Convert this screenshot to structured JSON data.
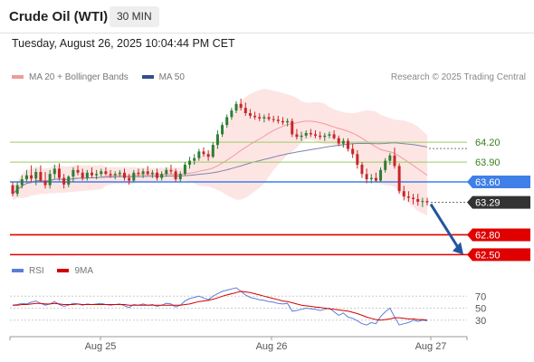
{
  "header": {
    "title": "Crude Oil (WTI)",
    "timeframe": "30 MIN"
  },
  "datetime": "Tuesday, August 26, 2025 10:04:44 PM CET",
  "legend": {
    "ma20_label": "MA 20 + Bollinger Bands",
    "ma50_label": "MA 50"
  },
  "copyright": "Research © 2025 Trading Central",
  "rsi_legend": {
    "rsi_label": "RSI",
    "ma_label": "9MA"
  },
  "colors": {
    "up": "#2e7d32",
    "down": "#c62828",
    "ma20": "#f19a9a",
    "bb_fill": "#fde0df",
    "ma50": "#7e86a8",
    "pivot": "#3f7fe8",
    "resistance": "#9acd63",
    "support": "#e00000",
    "current": "#333333",
    "rsi": "#5b7fd8",
    "rsi_ma": "#d40000",
    "arrow": "#2255a0"
  },
  "chart_data": {
    "type": "candlestick",
    "xaxis_labels": [
      "Aug 25",
      "Aug 26",
      "Aug 27"
    ],
    "ylim": [
      62.3,
      64.9
    ],
    "levels": [
      {
        "value": 64.2,
        "label": "64.20",
        "kind": "resistance"
      },
      {
        "value": 63.9,
        "label": "63.90",
        "kind": "resistance"
      },
      {
        "value": 63.6,
        "label": "63.60",
        "kind": "pivot"
      },
      {
        "value": 63.29,
        "label": "63.29",
        "kind": "current"
      },
      {
        "value": 62.8,
        "label": "62.80",
        "kind": "support"
      },
      {
        "value": 62.5,
        "label": "62.50",
        "kind": "support"
      }
    ],
    "candles": [
      [
        63.55,
        63.6,
        63.38,
        63.42
      ],
      [
        63.42,
        63.6,
        63.38,
        63.55
      ],
      [
        63.55,
        63.7,
        63.5,
        63.64
      ],
      [
        63.64,
        63.78,
        63.6,
        63.7
      ],
      [
        63.7,
        63.85,
        63.6,
        63.65
      ],
      [
        63.65,
        63.8,
        63.55,
        63.75
      ],
      [
        63.75,
        63.85,
        63.6,
        63.62
      ],
      [
        63.62,
        63.75,
        63.5,
        63.55
      ],
      [
        63.55,
        63.78,
        63.5,
        63.72
      ],
      [
        63.72,
        63.86,
        63.65,
        63.8
      ],
      [
        63.8,
        63.88,
        63.62,
        63.66
      ],
      [
        63.66,
        63.72,
        63.5,
        63.56
      ],
      [
        63.56,
        63.7,
        63.52,
        63.68
      ],
      [
        63.68,
        63.82,
        63.6,
        63.78
      ],
      [
        63.78,
        63.85,
        63.7,
        63.74
      ],
      [
        63.74,
        63.8,
        63.62,
        63.66
      ],
      [
        63.66,
        63.78,
        63.62,
        63.74
      ],
      [
        63.74,
        63.82,
        63.66,
        63.7
      ],
      [
        63.7,
        63.78,
        63.64,
        63.72
      ],
      [
        63.72,
        63.8,
        63.68,
        63.76
      ],
      [
        63.76,
        63.82,
        63.7,
        63.72
      ],
      [
        63.72,
        63.78,
        63.66,
        63.7
      ],
      [
        63.7,
        63.76,
        63.64,
        63.72
      ],
      [
        63.72,
        63.78,
        63.68,
        63.74
      ],
      [
        63.74,
        63.8,
        63.62,
        63.66
      ],
      [
        63.66,
        63.72,
        63.56,
        63.62
      ],
      [
        63.62,
        63.78,
        63.6,
        63.74
      ],
      [
        63.74,
        63.8,
        63.68,
        63.72
      ],
      [
        63.72,
        63.8,
        63.66,
        63.76
      ],
      [
        63.76,
        63.84,
        63.7,
        63.72
      ],
      [
        63.72,
        63.78,
        63.66,
        63.74
      ],
      [
        63.74,
        63.8,
        63.62,
        63.66
      ],
      [
        63.66,
        63.76,
        63.62,
        63.72
      ],
      [
        63.72,
        63.82,
        63.68,
        63.78
      ],
      [
        63.78,
        63.86,
        63.72,
        63.76
      ],
      [
        63.76,
        63.8,
        63.6,
        63.64
      ],
      [
        63.64,
        63.76,
        63.6,
        63.72
      ],
      [
        63.72,
        63.9,
        63.7,
        63.86
      ],
      [
        63.86,
        63.98,
        63.8,
        63.92
      ],
      [
        63.92,
        64.02,
        63.86,
        63.96
      ],
      [
        63.96,
        64.1,
        63.92,
        64.06
      ],
      [
        64.06,
        64.12,
        63.98,
        64.02
      ],
      [
        64.02,
        64.08,
        63.92,
        63.98
      ],
      [
        63.98,
        64.2,
        63.96,
        64.16
      ],
      [
        64.16,
        64.38,
        64.1,
        64.32
      ],
      [
        64.32,
        64.5,
        64.28,
        64.46
      ],
      [
        64.46,
        64.62,
        64.42,
        64.58
      ],
      [
        64.58,
        64.72,
        64.54,
        64.68
      ],
      [
        64.68,
        64.82,
        64.64,
        64.78
      ],
      [
        64.78,
        64.86,
        64.68,
        64.72
      ],
      [
        64.72,
        64.8,
        64.6,
        64.64
      ],
      [
        64.64,
        64.7,
        64.56,
        64.6
      ],
      [
        64.6,
        64.66,
        64.54,
        64.58
      ],
      [
        64.58,
        64.64,
        64.52,
        64.56
      ],
      [
        64.56,
        64.62,
        64.5,
        64.58
      ],
      [
        64.58,
        64.64,
        64.52,
        64.55
      ],
      [
        64.55,
        64.6,
        64.5,
        64.54
      ],
      [
        64.54,
        64.6,
        64.48,
        64.52
      ],
      [
        64.52,
        64.58,
        64.46,
        64.5
      ],
      [
        64.5,
        64.56,
        64.44,
        64.52
      ],
      [
        64.52,
        64.56,
        64.28,
        64.32
      ],
      [
        64.32,
        64.4,
        64.24,
        64.28
      ],
      [
        64.28,
        64.36,
        64.22,
        64.3
      ],
      [
        64.3,
        64.38,
        64.26,
        64.34
      ],
      [
        64.34,
        64.4,
        64.28,
        64.32
      ],
      [
        64.32,
        64.38,
        64.26,
        64.3
      ],
      [
        64.3,
        64.36,
        64.24,
        64.28
      ],
      [
        64.28,
        64.34,
        64.22,
        64.3
      ],
      [
        64.3,
        64.36,
        64.26,
        64.32
      ],
      [
        64.32,
        64.38,
        64.24,
        64.26
      ],
      [
        64.26,
        64.3,
        64.14,
        64.18
      ],
      [
        64.18,
        64.26,
        64.12,
        64.22
      ],
      [
        64.22,
        64.26,
        64.06,
        64.1
      ],
      [
        64.1,
        64.18,
        63.96,
        64.02
      ],
      [
        64.02,
        64.08,
        63.8,
        63.86
      ],
      [
        63.86,
        63.9,
        63.66,
        63.72
      ],
      [
        63.72,
        63.8,
        63.58,
        63.64
      ],
      [
        63.64,
        63.72,
        63.58,
        63.66
      ],
      [
        63.66,
        63.74,
        63.6,
        63.62
      ],
      [
        63.62,
        63.82,
        63.6,
        63.78
      ],
      [
        63.78,
        63.96,
        63.74,
        63.92
      ],
      [
        63.92,
        64.04,
        63.86,
        64.0
      ],
      [
        64.0,
        64.12,
        63.8,
        63.84
      ],
      [
        63.84,
        63.88,
        63.42,
        63.46
      ],
      [
        63.46,
        63.54,
        63.32,
        63.38
      ],
      [
        63.38,
        63.46,
        63.3,
        63.36
      ],
      [
        63.36,
        63.42,
        63.26,
        63.34
      ],
      [
        63.34,
        63.42,
        63.24,
        63.3
      ],
      [
        63.3,
        63.36,
        63.22,
        63.31
      ],
      [
        63.31,
        63.36,
        63.24,
        63.29
      ]
    ],
    "rsi": [
      55,
      56,
      58,
      57,
      60,
      62,
      58,
      55,
      57,
      61,
      56,
      53,
      55,
      58,
      57,
      55,
      57,
      56,
      57,
      58,
      56,
      55,
      56,
      57,
      54,
      51,
      56,
      55,
      57,
      55,
      56,
      53,
      55,
      58,
      57,
      52,
      55,
      62,
      66,
      68,
      70,
      67,
      64,
      70,
      74,
      78,
      80,
      82,
      84,
      78,
      72,
      68,
      66,
      64,
      63,
      61,
      60,
      58,
      57,
      58,
      45,
      46,
      48,
      50,
      49,
      48,
      46,
      48,
      50,
      44,
      38,
      42,
      35,
      33,
      29,
      24,
      22,
      26,
      24,
      36,
      44,
      50,
      35,
      22,
      24,
      26,
      30,
      28,
      30,
      29
    ],
    "rsi_ma": [
      55,
      55,
      56,
      56,
      57,
      58,
      58,
      57,
      57,
      58,
      57,
      56,
      56,
      56,
      57,
      56,
      56,
      56,
      56,
      56,
      56,
      56,
      56,
      56,
      56,
      55,
      55,
      55,
      55,
      55,
      55,
      55,
      55,
      55,
      55,
      55,
      55,
      56,
      57,
      59,
      61,
      62,
      63,
      65,
      67,
      70,
      72,
      74,
      76,
      78,
      77,
      76,
      74,
      72,
      70,
      68,
      66,
      64,
      62,
      61,
      59,
      57,
      55,
      54,
      53,
      52,
      51,
      50,
      49,
      48,
      47,
      46,
      45,
      43,
      41,
      38,
      35,
      33,
      31,
      30,
      31,
      32,
      34,
      34,
      33,
      32,
      32,
      31,
      31,
      30
    ],
    "rsi_levels": [
      70,
      50,
      30
    ]
  }
}
